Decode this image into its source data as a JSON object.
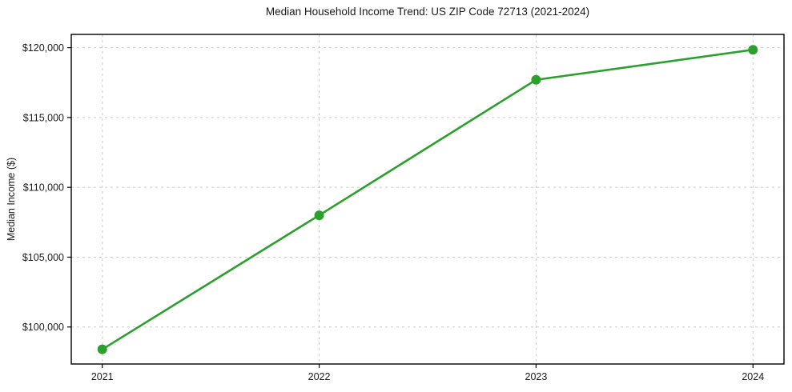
{
  "chart_data": {
    "type": "line",
    "title": "Median Household Income Trend: US ZIP Code 72713 (2021-2024)",
    "ylabel": "Median Income ($)",
    "xlabel": "",
    "x": [
      2021,
      2022,
      2023,
      2024
    ],
    "categories": [
      "2021",
      "2022",
      "2023",
      "2024"
    ],
    "series": [
      {
        "name": "Median Household Income",
        "values": [
          98400,
          108000,
          117700,
          119850
        ]
      }
    ],
    "yticks": [
      100000,
      105000,
      110000,
      115000,
      120000
    ],
    "ytick_labels": [
      "$100,000",
      "$105,000",
      "$110,000",
      "$115,000",
      "$120,000"
    ],
    "xlim": [
      2020.857,
      2024.143
    ],
    "ylim": [
      97350,
      120950
    ],
    "grid": true,
    "grid_style": "dashed",
    "legend": "none",
    "line_color": "#2ca02c",
    "marker": "circle",
    "grid_color": "#cccccc",
    "frame_color": "#000000",
    "background": "#ffffff"
  }
}
